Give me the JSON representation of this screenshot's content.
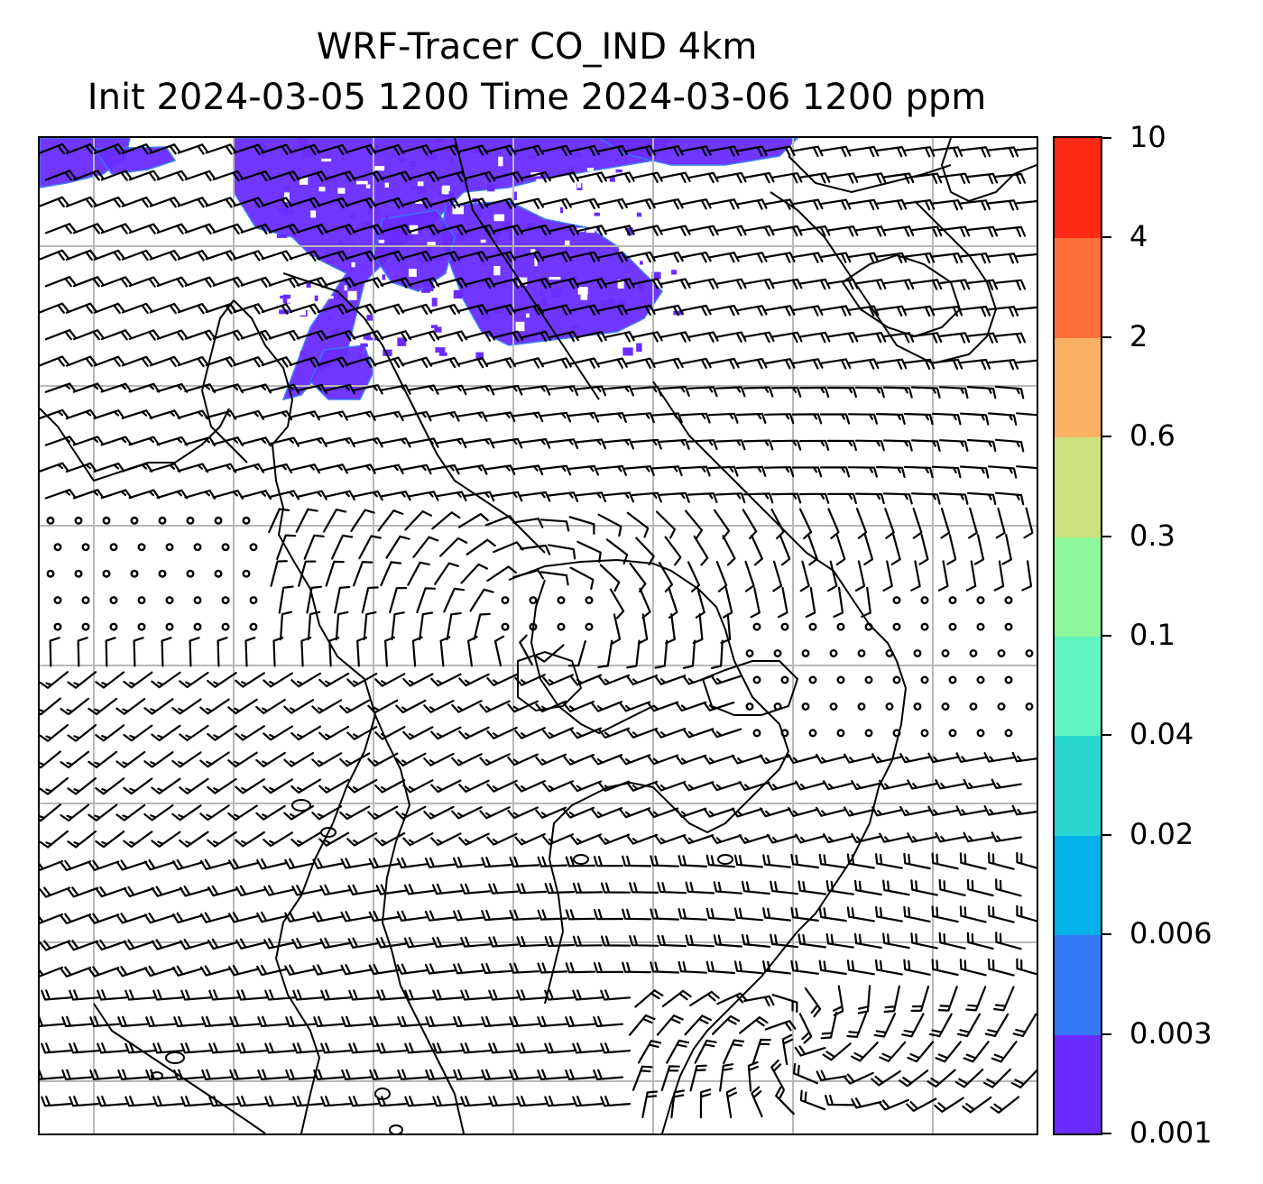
{
  "title": {
    "line1": "WRF-Tracer CO_IND 4km",
    "line2": "Init 2024-03-05 1200 Time 2024-03-06 1200 ppm"
  },
  "colorbar": {
    "levels": [
      "0.001",
      "0.003",
      "0.006",
      "0.02",
      "0.04",
      "0.1",
      "0.3",
      "0.6",
      "2",
      "4",
      "10"
    ],
    "colors": [
      "#6a2cff",
      "#3478f6",
      "#00b1ea",
      "#2ad6d0",
      "#5ff5c2",
      "#8ef79b",
      "#cce07f",
      "#fbb162",
      "#ff6f3b",
      "#ff2a16"
    ]
  },
  "map": {
    "tracer_color": "#6a2cff",
    "tracer_edge_color": "#3478f6",
    "gridline_color": "#b8b8b8",
    "coastline_color": "#000000"
  }
}
